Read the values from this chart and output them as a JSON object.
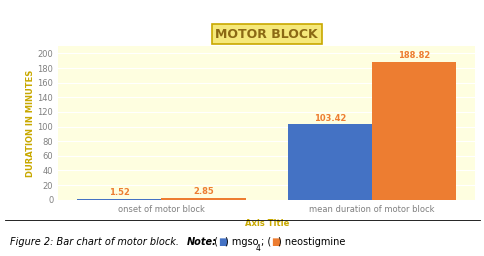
{
  "title": "MOTOR BLOCK",
  "xlabel": "Axis Title",
  "ylabel": "DURATION IN MINUTES",
  "categories": [
    "onset of motor block",
    "mean duration of motor block"
  ],
  "series1_values": [
    1.52,
    103.42
  ],
  "series2_values": [
    2.85,
    188.82
  ],
  "series1_color": "#4472C4",
  "series2_color": "#ED7D31",
  "bar_width": 0.3,
  "ylim": [
    0,
    210
  ],
  "yticks": [
    0,
    20,
    40,
    60,
    80,
    100,
    120,
    140,
    160,
    180,
    200
  ],
  "background_color": "#FEFEE0",
  "title_box_color": "#F5E87A",
  "title_box_edge": "#C8A800",
  "title_fontsize": 9,
  "label_fontsize": 6,
  "tick_fontsize": 6,
  "annotation_fontsize": 6,
  "xlabel_color": "#C8A800",
  "ylabel_color": "#C8A800",
  "caption_fontsize": 7
}
